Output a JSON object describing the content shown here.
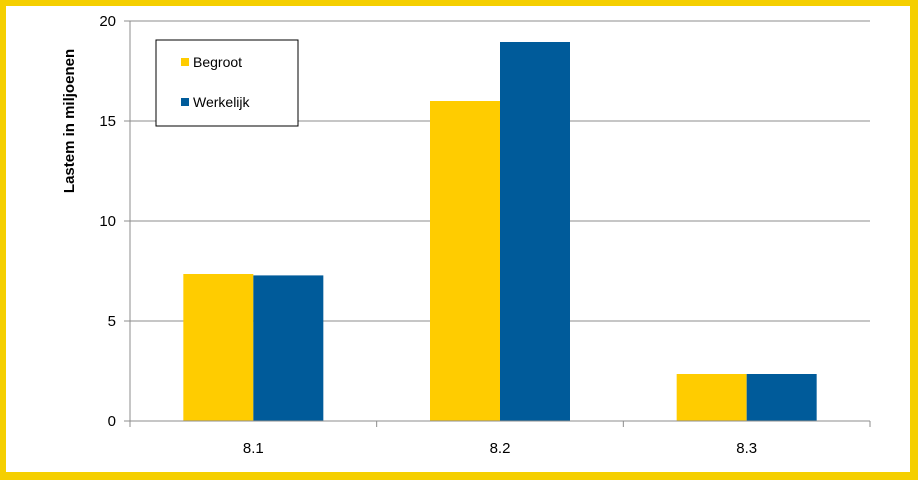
{
  "chart_data": {
    "type": "bar",
    "categories": [
      "8.1",
      "8.2",
      "8.3"
    ],
    "series": [
      {
        "name": "Begroot",
        "color": "#ffcc00",
        "values": [
          7.35,
          16.0,
          2.35
        ]
      },
      {
        "name": "Werkelijk",
        "color": "#005b9a",
        "values": [
          7.28,
          18.95,
          2.35
        ]
      }
    ],
    "xlabel": "",
    "ylabel": "Lastem in miljoenen",
    "ylim": [
      0,
      20
    ],
    "yticks": [
      0,
      5,
      10,
      15,
      20
    ],
    "grid": true,
    "legend_position": "top-left"
  }
}
